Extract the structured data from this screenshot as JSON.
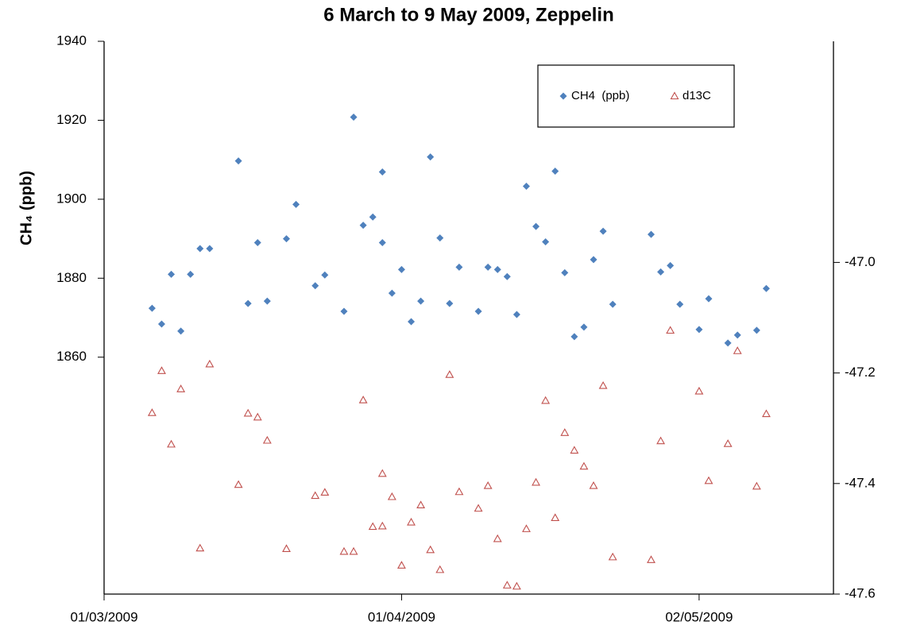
{
  "chart_data": {
    "type": "scatter",
    "title": "6 March to 9 May 2009, Zeppelin",
    "y_label": "CH₄ (ppb)",
    "xlim": [
      "2009-03-01",
      "2009-05-16"
    ],
    "xticks": [
      {
        "value": "2009-03-01",
        "label": "01/03/2009"
      },
      {
        "value": "2009-04-01",
        "label": "01/04/2009"
      },
      {
        "value": "2009-05-02",
        "label": "02/05/2009"
      }
    ],
    "ylim": [
      1800,
      1940
    ],
    "yticks": [
      1860,
      1880,
      1900,
      1920,
      1940
    ],
    "y2lim": [
      -47.6,
      -46.6
    ],
    "y2ticks": [
      {
        "value": -47.6,
        "label": "-47.6"
      },
      {
        "value": -47.4,
        "label": "-47.4"
      },
      {
        "value": -47.2,
        "label": "-47.2"
      },
      {
        "value": -47.0,
        "label": "-47.0"
      }
    ],
    "legend": "top-right",
    "series": [
      {
        "name": "CH4  (ppb)",
        "color": "#4f81bd",
        "marker": "diamond",
        "x": [
          "2009-03-06",
          "2009-03-07",
          "2009-03-08",
          "2009-03-09",
          "2009-03-10",
          "2009-03-11",
          "2009-03-12",
          "2009-03-15",
          "2009-03-16",
          "2009-03-17",
          "2009-03-18",
          "2009-03-20",
          "2009-03-21",
          "2009-03-23",
          "2009-03-24",
          "2009-03-26",
          "2009-03-27",
          "2009-03-28",
          "2009-03-29",
          "2009-03-30",
          "2009-03-30",
          "2009-03-31",
          "2009-04-01",
          "2009-04-02",
          "2009-04-03",
          "2009-04-04",
          "2009-04-05",
          "2009-04-06",
          "2009-04-07",
          "2009-04-09",
          "2009-04-10",
          "2009-04-11",
          "2009-04-12",
          "2009-04-13",
          "2009-04-14",
          "2009-04-15",
          "2009-04-16",
          "2009-04-17",
          "2009-04-18",
          "2009-04-19",
          "2009-04-20",
          "2009-04-21",
          "2009-04-22",
          "2009-04-23",
          "2009-04-27",
          "2009-04-28",
          "2009-04-29",
          "2009-04-30",
          "2009-05-02",
          "2009-05-03",
          "2009-05-05",
          "2009-05-06",
          "2009-05-08",
          "2009-05-09"
        ],
        "values": [
          1872.4,
          1868.4,
          1881,
          1866.6,
          1881,
          1887.5,
          1887.5,
          1909.7,
          1873.6,
          1889,
          1874.2,
          1890,
          1898.7,
          1878.1,
          1880.8,
          1871.6,
          1920.8,
          1893.4,
          1895.5,
          1906.9,
          1889,
          1876.2,
          1882.2,
          1869,
          1874.2,
          1910.7,
          1890.2,
          1873.6,
          1882.8,
          1871.6,
          1882.8,
          1882.2,
          1880.4,
          1870.8,
          1903.3,
          1893.1,
          1889.2,
          1907.1,
          1881.4,
          1865.2,
          1867.6,
          1884.7,
          1891.9,
          1873.4,
          1891.1,
          1881.6,
          1883.2,
          1873.4,
          1867,
          1874.8,
          1863.6,
          1865.6,
          1866.8,
          1877.4
        ]
      },
      {
        "name": "d13C",
        "color": "#c0504d",
        "marker": "triangle",
        "axis": "y2",
        "x": [
          "2009-03-06",
          "2009-03-07",
          "2009-03-08",
          "2009-03-09",
          "2009-03-11",
          "2009-03-12",
          "2009-03-15",
          "2009-03-16",
          "2009-03-17",
          "2009-03-18",
          "2009-03-20",
          "2009-03-23",
          "2009-03-24",
          "2009-03-26",
          "2009-03-27",
          "2009-03-28",
          "2009-03-29",
          "2009-03-30",
          "2009-03-30",
          "2009-03-31",
          "2009-04-01",
          "2009-04-02",
          "2009-04-03",
          "2009-04-04",
          "2009-04-05",
          "2009-04-06",
          "2009-04-07",
          "2009-04-09",
          "2009-04-10",
          "2009-04-11",
          "2009-04-12",
          "2009-04-13",
          "2009-04-14",
          "2009-04-15",
          "2009-04-16",
          "2009-04-17",
          "2009-04-18",
          "2009-04-19",
          "2009-04-20",
          "2009-04-21",
          "2009-04-22",
          "2009-04-23",
          "2009-04-27",
          "2009-04-28",
          "2009-04-29",
          "2009-05-02",
          "2009-05-03",
          "2009-05-05",
          "2009-05-06",
          "2009-05-08",
          "2009-05-09"
        ],
        "values": [
          -47.272,
          -47.196,
          -47.329,
          -47.229,
          -47.517,
          -47.184,
          -47.402,
          -47.273,
          -47.28,
          -47.322,
          -47.518,
          -47.422,
          -47.416,
          -47.523,
          -47.523,
          -47.249,
          -47.478,
          -47.382,
          -47.477,
          -47.424,
          -47.548,
          -47.47,
          -47.439,
          -47.52,
          -47.556,
          -47.203,
          -47.415,
          -47.445,
          -47.404,
          -47.5,
          -47.584,
          -47.586,
          -47.482,
          -47.398,
          -47.25,
          -47.462,
          -47.308,
          -47.34,
          -47.369,
          -47.404,
          -47.223,
          -47.533,
          -47.538,
          -47.323,
          -47.123,
          -47.233,
          -47.395,
          -47.328,
          -47.16,
          -47.405,
          -47.274
        ]
      }
    ]
  }
}
